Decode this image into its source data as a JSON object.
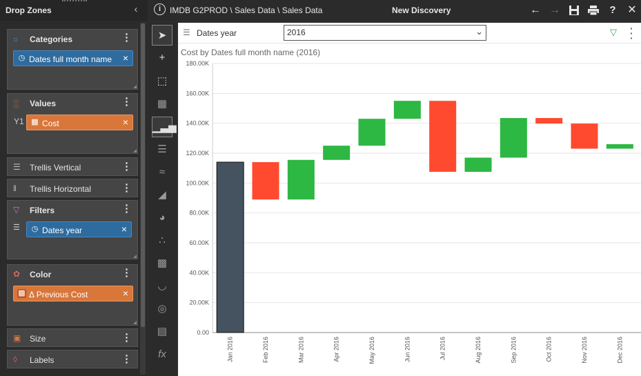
{
  "drop_zones": {
    "title": "Drop Zones",
    "zones": {
      "categories": {
        "label": "Categories",
        "chip": "Dates full month name"
      },
      "values": {
        "label": "Values",
        "chip": "Cost",
        "axis_marker": "Y1"
      },
      "trellis_vertical": {
        "label": "Trellis Vertical"
      },
      "trellis_horizontal": {
        "label": "Trellis Horizontal"
      },
      "filters": {
        "label": "Filters",
        "chip": "Dates year"
      },
      "color": {
        "label": "Color",
        "chip": "Δ Previous Cost"
      },
      "size": {
        "label": "Size"
      },
      "labels": {
        "label": "Labels"
      }
    }
  },
  "header": {
    "breadcrumb": "IMDB G2PROD \\ Sales Data \\ Sales Data",
    "title": "New Discovery",
    "icons": [
      "info-icon",
      "back-arrow-icon",
      "forward-arrow-icon",
      "save-icon",
      "print-icon",
      "help-icon",
      "close-icon"
    ]
  },
  "filter_bar": {
    "label": "Dates year",
    "selected": "2016"
  },
  "chart_title": "Cost by Dates full month name (2016)",
  "colors": {
    "total": "#44535f",
    "increase": "#2db743",
    "decrease": "#ff4a2f",
    "accent": "#2e6b9e",
    "chip_orange": "#d9763a"
  },
  "chart_data": {
    "type": "waterfall",
    "title": "Cost by Dates full month name (2016)",
    "xlabel": "",
    "ylabel": "",
    "ylim": [
      0,
      180000
    ],
    "y_ticks": [
      "0.00",
      "20.00K",
      "40.00K",
      "60.00K",
      "80.00K",
      "100.00K",
      "120.00K",
      "140.00K",
      "160.00K",
      "180.00K"
    ],
    "categories": [
      "Jan 2016",
      "Feb 2016",
      "Mar 2016",
      "Apr 2016",
      "May 2016",
      "Jun 2016",
      "Jul 2016",
      "Aug 2016",
      "Sep 2016",
      "Oct 2016",
      "Nov 2016",
      "Dec 2016"
    ],
    "bars": [
      {
        "start": 0,
        "end": 114000
      },
      {
        "start": 114000,
        "end": 89000
      },
      {
        "start": 89000,
        "end": 115500
      },
      {
        "start": 115500,
        "end": 125000
      },
      {
        "start": 125000,
        "end": 143000
      },
      {
        "start": 143000,
        "end": 155000
      },
      {
        "start": 155000,
        "end": 107500
      },
      {
        "start": 107500,
        "end": 117000
      },
      {
        "start": 117000,
        "end": 143500
      },
      {
        "start": 143500,
        "end": 139800
      },
      {
        "start": 139800,
        "end": 123000
      },
      {
        "start": 123000,
        "end": 126000
      }
    ],
    "grid": true,
    "legend": "none"
  }
}
